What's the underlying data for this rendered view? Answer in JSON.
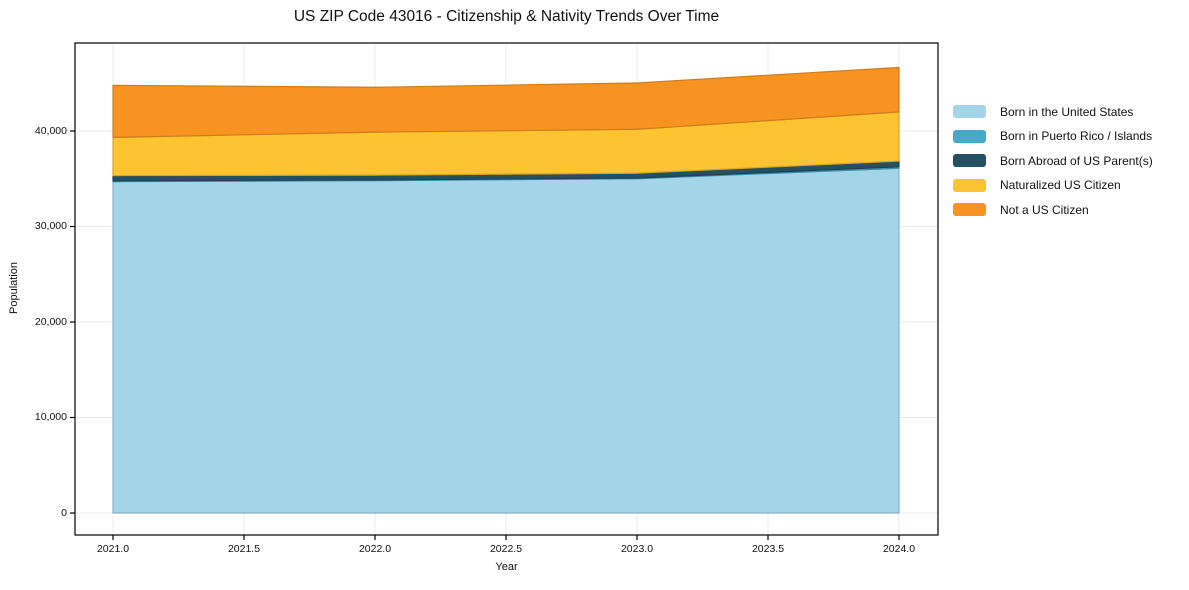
{
  "page": {
    "background": "#ffffff"
  },
  "chart_data": {
    "type": "area",
    "stacked": true,
    "title": "US ZIP Code 43016 - Citizenship & Nativity Trends Over Time",
    "xlabel": "Year",
    "ylabel": "Population",
    "x": [
      2021,
      2022,
      2023,
      2024
    ],
    "series": [
      {
        "name": "Born in the United States",
        "color": "#a3d4e8",
        "values": [
          34700,
          34800,
          35000,
          36100
        ]
      },
      {
        "name": "Born in Puerto Rico / Islands",
        "color": "#46a9c9",
        "values": [
          80,
          80,
          80,
          150
        ]
      },
      {
        "name": "Born Abroad of US Parent(s)",
        "color": "#235062",
        "values": [
          550,
          500,
          500,
          600
        ]
      },
      {
        "name": "Naturalized US Citizen",
        "color": "#fdc330",
        "values": [
          4000,
          4500,
          4600,
          5150
        ]
      },
      {
        "name": "Not a US Citizen",
        "color": "#f79421",
        "values": [
          5450,
          4700,
          4850,
          4650
        ]
      }
    ],
    "totals": [
      44780,
      44580,
      45030,
      46650
    ],
    "xticks": {
      "values": [
        2021.0,
        2021.5,
        2022.0,
        2022.5,
        2023.0,
        2023.5,
        2024.0
      ],
      "labels": [
        "2021.0",
        "2021.5",
        "2022.0",
        "2022.5",
        "2023.0",
        "2023.5",
        "2024.0"
      ]
    },
    "yticks": {
      "values": [
        0,
        10000,
        20000,
        30000,
        40000
      ],
      "labels": [
        "0",
        "10,000",
        "20,000",
        "30,000",
        "40,000"
      ]
    },
    "xlim": [
      2020.85,
      2024.15
    ],
    "ylim": [
      -2300,
      49200
    ],
    "grid": true,
    "grid_color": "#ebebeb",
    "spine_color": "#000000",
    "legend_position": "right-outside"
  }
}
